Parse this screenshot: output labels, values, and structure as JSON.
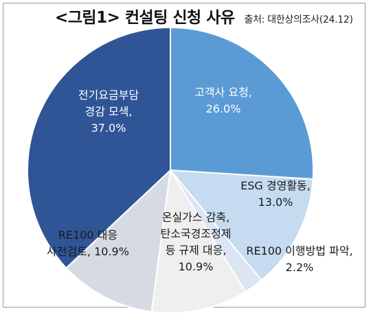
{
  "header": {
    "title": "<그림1> 컨설팅 신청 사유",
    "source": "출처: 대한상의조사(24.12)"
  },
  "chart_data": {
    "type": "pie",
    "title": "<그림1> 컨설팅 신청 사유",
    "source": "출처: 대한상의조사(24.12)",
    "slices": [
      {
        "label": "고객사 요청",
        "value": 26.0,
        "display": "26.0%",
        "color": "#5b9bd5",
        "label_style": "white"
      },
      {
        "label": "ESG 경영활동",
        "value": 13.0,
        "display": "13.0%",
        "color": "#c5dbef",
        "label_style": "dark"
      },
      {
        "label": "RE100 이행방법 파악",
        "value": 2.2,
        "display": "2.2%",
        "color": "#dbe5f3",
        "label_style": "dark"
      },
      {
        "label": "온실가스 감축, 탄소국경조정제 등 규제 대응",
        "value": 10.9,
        "display": "10.9%",
        "color": "#efefef",
        "label_style": "dark"
      },
      {
        "label": "RE100 대응 사전검토",
        "value": 10.9,
        "display": "10.9%",
        "color": "#d6dbe3",
        "label_style": "dark"
      },
      {
        "label": "전기요금부담 경감 모색",
        "value": 37.0,
        "display": "37.0%",
        "color": "#2f5597",
        "label_style": "white"
      }
    ],
    "label_lines": [
      [
        "고객사 요청,",
        "26.0%"
      ],
      [
        "ESG 경영활동,",
        "13.0%"
      ],
      [
        "RE100 이행방법 파악,",
        "2.2%"
      ],
      [
        "온실가스 감축,",
        "탄소국경조정제",
        "등 규제 대응,",
        "10.9%"
      ],
      [
        "RE100 대응",
        "사전검토, 10.9%"
      ],
      [
        "전기요금부담",
        "경감 모색,",
        "37.0%"
      ]
    ],
    "start_angle_deg": 0,
    "direction": "clockwise"
  }
}
